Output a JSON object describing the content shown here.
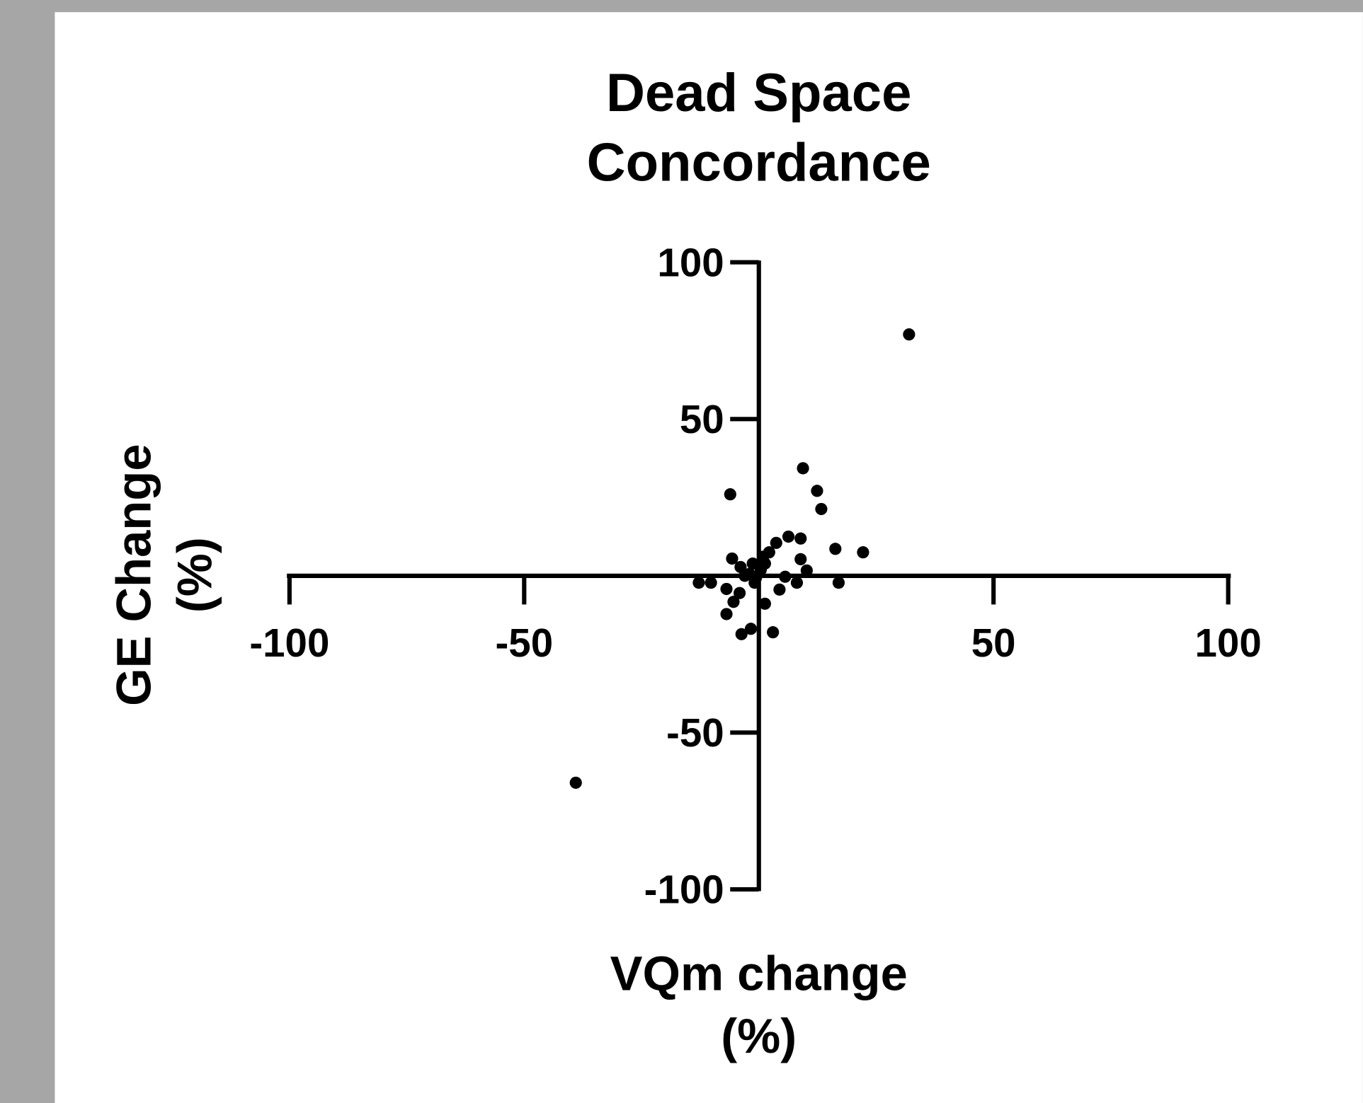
{
  "chart_data": {
    "type": "scatter",
    "title": [
      "Dead Space",
      "Concordance"
    ],
    "x_label": [
      "VQm change",
      "(%)"
    ],
    "y_label": [
      "GE Change",
      "(%)"
    ],
    "color": "#000000",
    "x": [
      32,
      -39,
      9.4,
      -6.1,
      12.4,
      13.3,
      6.3,
      8.9,
      3.7,
      16.3,
      22.2,
      2.2,
      0.9,
      8.9,
      -5.7,
      1.3,
      -1.3,
      -3.9,
      10.2,
      -2,
      -0.6,
      5.6,
      -12.8,
      -10.2,
      8.1,
      17,
      -6.9,
      -4.1,
      4.4,
      -5.4,
      1.3,
      -6.9,
      -1.7,
      -3.7,
      3,
      -3,
      0.4,
      -0.9
    ],
    "y": [
      77,
      -66,
      34.3,
      26,
      27.1,
      21.3,
      12.5,
      11.9,
      10.5,
      8.6,
      7.5,
      7.5,
      6.1,
      5.3,
      5.5,
      3.9,
      3.9,
      2.8,
      1.7,
      0.6,
      -0.6,
      -0.3,
      -2.2,
      -2.2,
      -2.2,
      -2.2,
      -4.2,
      -5.5,
      -4.4,
      -8.3,
      -8.9,
      -12.2,
      -16.9,
      -18.6,
      -18,
      0,
      1.9,
      -2.2
    ],
    "xlim": [
      -100,
      100
    ],
    "ylim": [
      -100,
      100
    ],
    "xticks": [
      -100,
      -50,
      50,
      100
    ],
    "yticks": [
      100,
      50,
      -50,
      -100
    ]
  }
}
